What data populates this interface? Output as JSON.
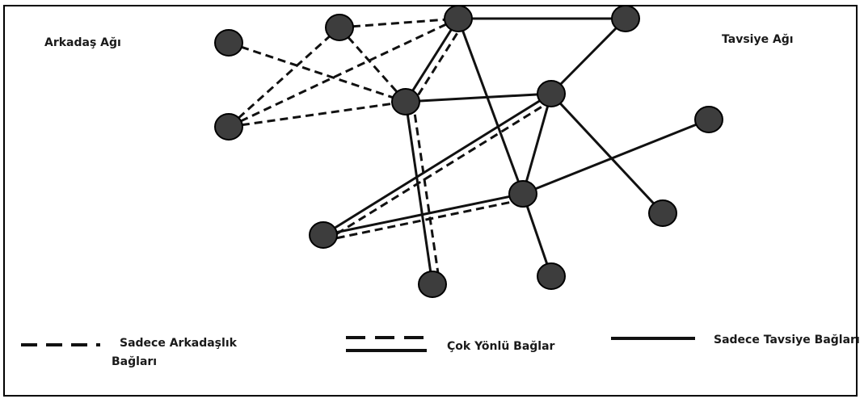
{
  "labels": {
    "friend_network": "Arkadaş Ağı",
    "advice_network": "Tavsiye Ağı"
  },
  "legend": {
    "friendship_only_line1": "Sadece Arkadaşlık",
    "friendship_only_line2": "Bağları",
    "multiplex": "Çok Yönlü Bağlar",
    "advice_only": "Sadece Tavsiye Bağları"
  },
  "colors": {
    "node_fill": "#3d3d3d",
    "node_stroke": "#000000",
    "edge": "#111111"
  }
}
